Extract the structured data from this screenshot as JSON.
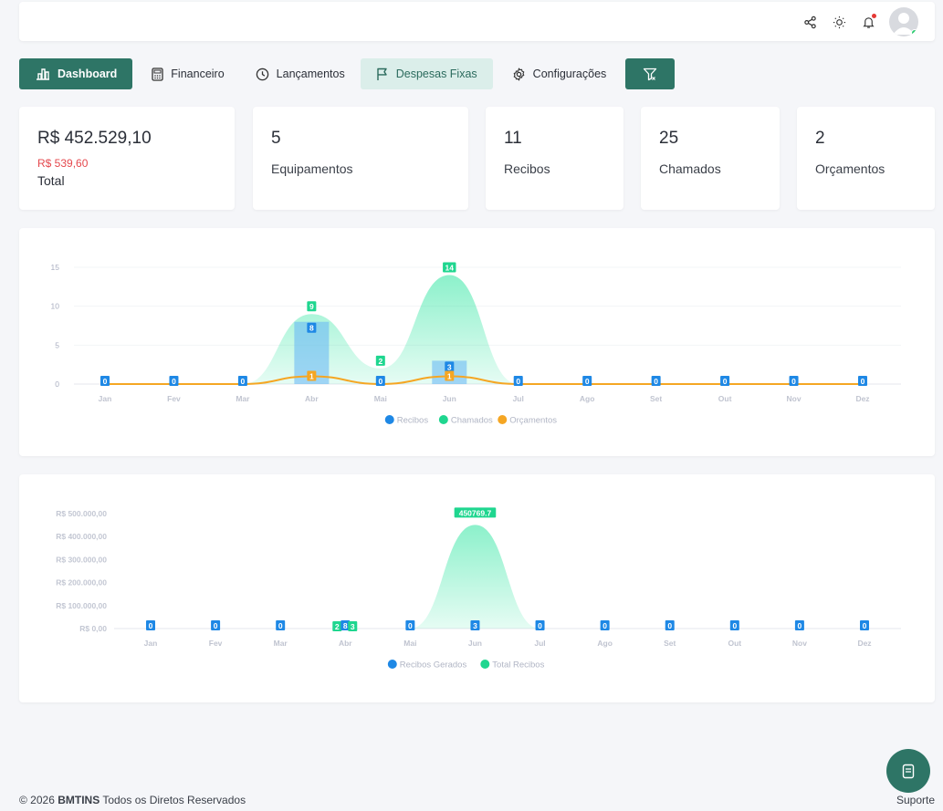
{
  "topbar": {
    "icons": [
      "share-icon",
      "sun-icon",
      "bell-icon",
      "user-avatar"
    ]
  },
  "nav": {
    "tabs": [
      {
        "label": "Dashboard",
        "icon": "bar-chart-icon"
      },
      {
        "label": "Financeiro",
        "icon": "calculator-icon"
      },
      {
        "label": "Lançamentos",
        "icon": "clock-icon"
      },
      {
        "label": "Despesas Fixas",
        "icon": "flag-icon"
      },
      {
        "label": "Configurações",
        "icon": "gear-icon"
      }
    ],
    "filter_icon": "filter-icon"
  },
  "cards": {
    "total": {
      "value": "R$ 452.529,10",
      "sub": "R$ 539,60",
      "label": "Total"
    },
    "equipamentos": {
      "value": "5",
      "label": "Equipamentos"
    },
    "recibos": {
      "value": "11",
      "label": "Recibos"
    },
    "chamados": {
      "value": "25",
      "label": "Chamados"
    },
    "orcamentos": {
      "value": "2",
      "label": "Orçamentos"
    }
  },
  "colors": {
    "accent": "#2e7566",
    "blue": "#1e88e5",
    "green": "#2ee5a0",
    "orange": "#f5a623",
    "red": "#e5484d"
  },
  "chart_data": [
    {
      "type": "area",
      "categories": [
        "Jan",
        "Fev",
        "Mar",
        "Abr",
        "Mai",
        "Jun",
        "Jul",
        "Ago",
        "Set",
        "Out",
        "Nov",
        "Dez"
      ],
      "yticks": [
        "0",
        "5",
        "10",
        "15"
      ],
      "ylim": [
        0,
        15
      ],
      "series": [
        {
          "name": "Recibos",
          "kind": "bar",
          "values": [
            0,
            0,
            0,
            8,
            0,
            3,
            0,
            0,
            0,
            0,
            0,
            0
          ]
        },
        {
          "name": "Chamados",
          "kind": "area",
          "values": [
            0,
            0,
            0,
            9,
            2,
            14,
            0,
            0,
            0,
            0,
            0,
            0
          ]
        },
        {
          "name": "Orçamentos",
          "kind": "line",
          "values": [
            0,
            0,
            0,
            1,
            0,
            1,
            0,
            0,
            0,
            0,
            0,
            0
          ]
        }
      ],
      "legend_position": "bottom"
    },
    {
      "type": "area",
      "categories": [
        "Jan",
        "Fev",
        "Mar",
        "Abr",
        "Mai",
        "Jun",
        "Jul",
        "Ago",
        "Set",
        "Out",
        "Nov",
        "Dez"
      ],
      "yticks": [
        "R$ 0,00",
        "R$ 100.000,00",
        "R$ 200.000,00",
        "R$ 300.000,00",
        "R$ 400.000,00",
        "R$ 500.000,00"
      ],
      "ylim": [
        0,
        500000
      ],
      "series": [
        {
          "name": "Recibos Gerados",
          "kind": "bar",
          "values": [
            0,
            0,
            0,
            8,
            0,
            3,
            0,
            0,
            0,
            0,
            0,
            0
          ]
        },
        {
          "name": "Total Recibos",
          "kind": "area",
          "values": [
            0,
            0,
            0,
            2,
            0,
            450769.7,
            0,
            0,
            0,
            0,
            0,
            0
          ]
        }
      ],
      "extra_labels": {
        "Abr": [
          "2",
          "8",
          "3"
        ]
      },
      "data_labels": {
        "peak": "450769.7"
      },
      "legend_position": "bottom"
    }
  ],
  "footer": {
    "copyright": "© 2026 ",
    "brand": "BMTINS",
    "rights": " Todos os Diretos Reservados",
    "support": "Suporte"
  }
}
